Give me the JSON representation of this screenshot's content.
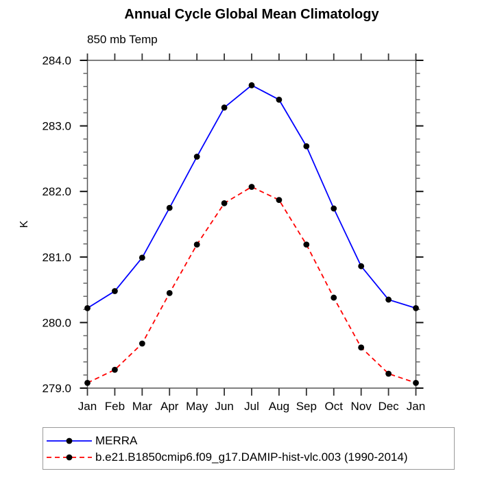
{
  "chart_data": {
    "type": "line",
    "title": "Annual Cycle Global Mean Climatology",
    "subtitle": "850 mb Temp",
    "ylabel": "K",
    "x_categories": [
      "Jan",
      "Feb",
      "Mar",
      "Apr",
      "May",
      "Jun",
      "Jul",
      "Aug",
      "Sep",
      "Oct",
      "Nov",
      "Dec",
      "Jan"
    ],
    "series": [
      {
        "name": "MERRA",
        "line_style": "solid",
        "line_color": "#0000ff",
        "marker": "filled-circle",
        "marker_color": "#000000",
        "values": [
          280.22,
          280.48,
          280.99,
          281.75,
          282.53,
          283.28,
          283.62,
          283.4,
          282.69,
          281.74,
          280.86,
          280.35,
          280.22
        ]
      },
      {
        "name": "b.e21.B1850cmip6.f09_g17.DAMIP-hist-vlc.003 (1990-2014)",
        "line_style": "dashed",
        "line_color": "#ff0000",
        "marker": "filled-circle",
        "marker_color": "#000000",
        "values": [
          279.08,
          279.28,
          279.68,
          280.45,
          281.19,
          281.82,
          282.07,
          281.87,
          281.19,
          280.38,
          279.62,
          279.22,
          279.08
        ]
      }
    ],
    "ylim": [
      279.0,
      284.0
    ],
    "y_major_ticks": [
      279.0,
      280.0,
      281.0,
      282.0,
      283.0,
      284.0
    ],
    "y_tick_labels": [
      "279.0",
      "280.0",
      "281.0",
      "282.0",
      "283.0",
      "284.0"
    ],
    "y_minor_step": 0.2,
    "grid": false,
    "legend_position": "bottom"
  }
}
